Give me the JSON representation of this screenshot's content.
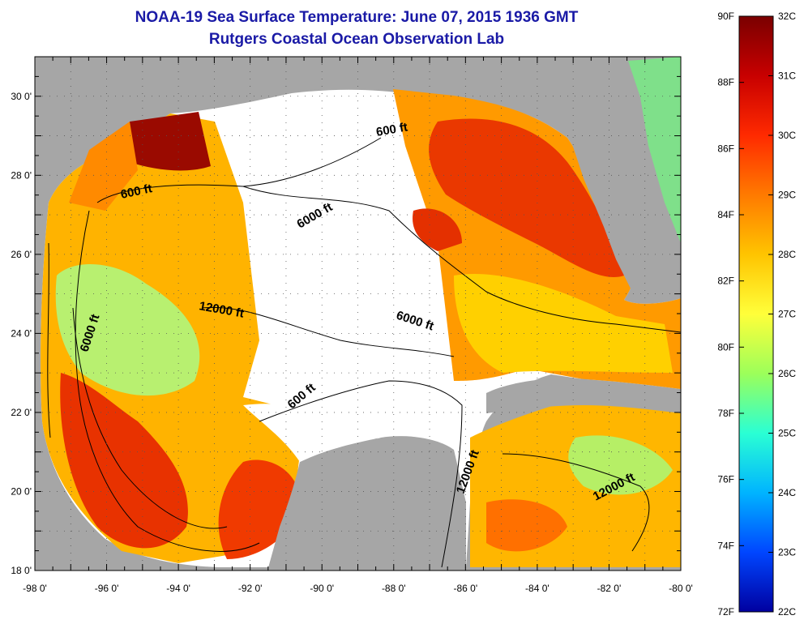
{
  "title": "NOAA-19 Sea Surface Temperature:  June 07, 2015 1936 GMT",
  "subtitle": "Rutgers Coastal Ocean Observation Lab",
  "map": {
    "lon_range": [
      -98,
      -80
    ],
    "lat_range": [
      18,
      31
    ],
    "lon_labels": [
      "-98 0'",
      "-96 0'",
      "-94 0'",
      "-92 0'",
      "-90 0'",
      "-88 0'",
      "-86 0'",
      "-84 0'",
      "-82 0'",
      "-80 0'"
    ],
    "lat_labels": [
      "18 0'",
      "20 0'",
      "22 0'",
      "24 0'",
      "26 0'",
      "28 0'",
      "30 0'"
    ],
    "land_color": "#a6a6a6",
    "no_data_color": "#ffffff",
    "grid": "dotted",
    "contour_labels": [
      "600 ft",
      "600 ft",
      "600 ft",
      "6000 ft",
      "6000 ft",
      "6000 ft",
      "12000 ft",
      "12000 ft",
      "12000 ft"
    ]
  },
  "colorbar": {
    "fahrenheit_labels": [
      "90F",
      "88F",
      "86F",
      "84F",
      "82F",
      "80F",
      "78F",
      "76F",
      "74F",
      "72F"
    ],
    "celsius_labels": [
      "32C",
      "31C",
      "30C",
      "29C",
      "28C",
      "27C",
      "26C",
      "25C",
      "24C",
      "23C",
      "22C"
    ],
    "colors": [
      "#7a0000",
      "#c80000",
      "#ff2a00",
      "#ff7a00",
      "#ffc400",
      "#ffff3a",
      "#9cff5a",
      "#2affd4",
      "#00b4ff",
      "#0046ff",
      "#0000a0"
    ]
  }
}
